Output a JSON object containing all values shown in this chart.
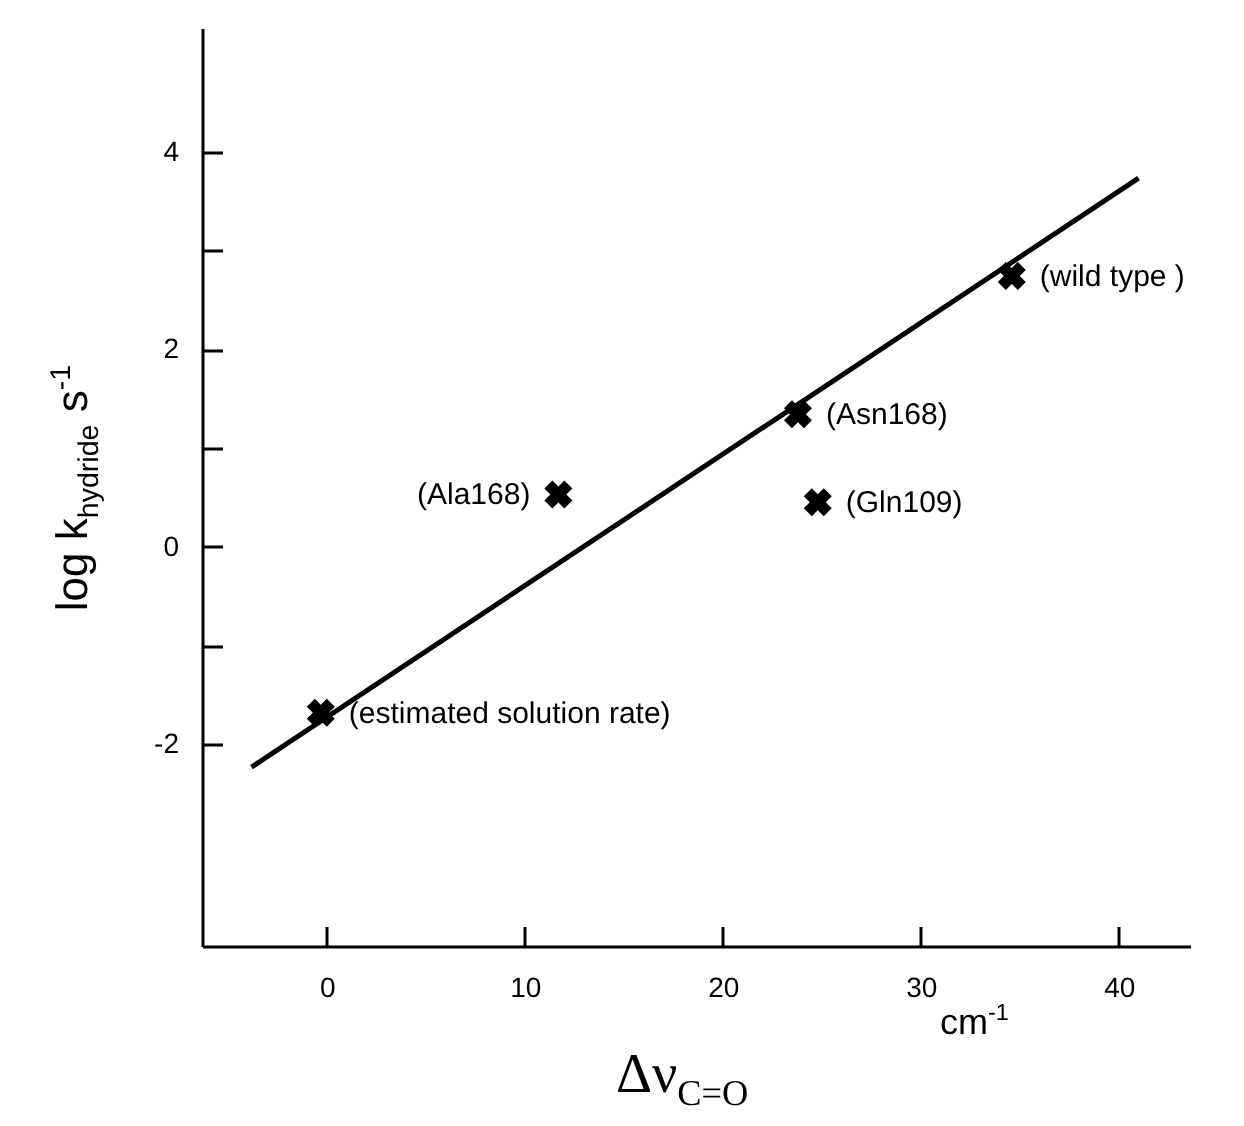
{
  "chart_data": {
    "type": "scatter",
    "xlabel": "Δν$_{C=O}$",
    "ylabel": "log k$_{hydride}$  s$^{-1}$",
    "xlim": [
      -6.3,
      43.6
    ],
    "ylim": [
      -4.04,
      5.25
    ],
    "xticks": [
      0,
      10,
      20,
      30,
      40
    ],
    "yticks": [
      {
        "value": -2,
        "label": "-2"
      },
      {
        "value": -1,
        "label": null
      },
      0,
      {
        "value": 1,
        "label": null
      },
      2,
      {
        "value": 3,
        "label": null
      },
      4
    ],
    "grid": false,
    "series": [
      {
        "marker": "cross",
        "color": "#000000",
        "x": [
          -0.3,
          11.7,
          23.8,
          24.8,
          34.6
        ],
        "values": [
          -1.68,
          0.53,
          1.34,
          0.45,
          2.74
        ]
      },
      {
        "type": "line",
        "color": "#000000",
        "x": [
          -3.8,
          41.0
        ],
        "values": [
          -2.23,
          3.73
        ]
      }
    ],
    "annotations": [
      {
        "text": "(estimated solution rate)",
        "x": -0.3,
        "y": -1.68
      },
      {
        "text": "(Ala168)",
        "x": 11.7,
        "y": 0.53
      },
      {
        "text": "(Asn168)",
        "x": 23.8,
        "y": 1.34
      },
      {
        "text": "(Gln109)",
        "x": 24.8,
        "y": 0.45
      },
      {
        "text": "(wild type )",
        "x": 34.6,
        "y": 2.74
      },
      "cm$^{-1}$"
    ]
  }
}
